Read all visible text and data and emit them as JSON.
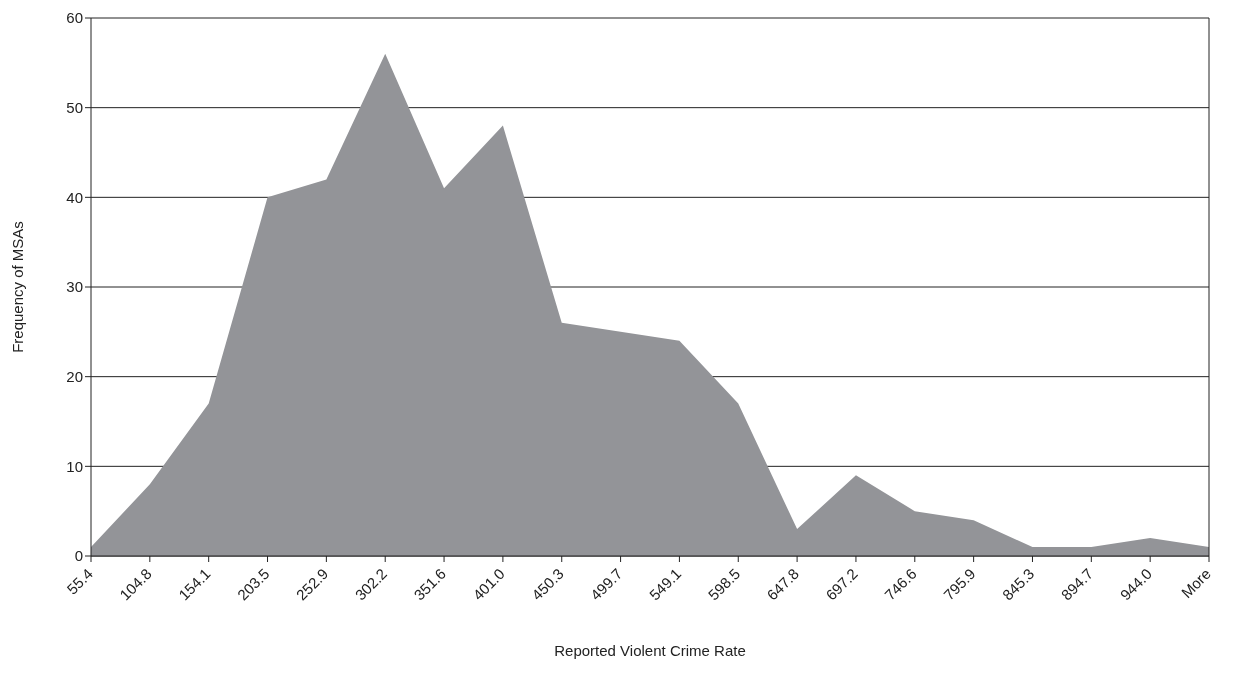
{
  "chart_data": {
    "type": "area",
    "xlabel": "Reported Violent Crime Rate",
    "ylabel": "Frequency of MSAs",
    "categories": [
      "55.4",
      "104.8",
      "154.1",
      "203.5",
      "252.9",
      "302.2",
      "351.6",
      "401.0",
      "450.3",
      "499.7",
      "549.1",
      "598.5",
      "647.8",
      "697.2",
      "746.6",
      "795.9",
      "845.3",
      "894.7",
      "944.0",
      "More"
    ],
    "values": [
      1,
      8,
      17,
      40,
      42,
      56,
      41,
      48,
      26,
      25,
      24,
      17,
      3,
      9,
      5,
      4,
      1,
      1,
      2,
      1
    ],
    "color": "#939498",
    "ylim": [
      0,
      60
    ],
    "yticks": [
      0,
      10,
      20,
      30,
      40,
      50,
      60
    ],
    "grid": "y"
  }
}
